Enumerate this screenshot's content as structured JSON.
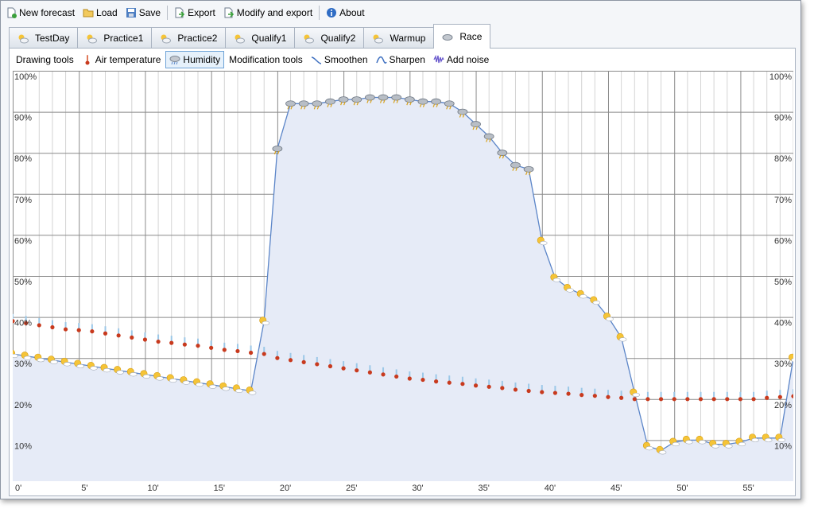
{
  "toolbar": {
    "items": [
      {
        "label": "New forecast",
        "icon": "new-document-icon"
      },
      {
        "label": "Load",
        "icon": "folder-open-icon"
      },
      {
        "label": "Save",
        "icon": "floppy-disk-icon"
      },
      {
        "label": "Export",
        "icon": "export-icon"
      },
      {
        "label": "Modify and export",
        "icon": "modify-export-icon"
      },
      {
        "label": "About",
        "icon": "info-icon"
      }
    ]
  },
  "tabs": [
    {
      "label": "TestDay",
      "icon": "sun-cloud-icon"
    },
    {
      "label": "Practice1",
      "icon": "sun-cloud-icon"
    },
    {
      "label": "Practice2",
      "icon": "sun-cloud-icon"
    },
    {
      "label": "Qualify1",
      "icon": "sun-cloud-icon"
    },
    {
      "label": "Qualify2",
      "icon": "sun-cloud-icon"
    },
    {
      "label": "Warmup",
      "icon": "sun-cloud-icon"
    },
    {
      "label": "Race",
      "icon": "cloud-icon",
      "active": true
    }
  ],
  "subtoolbar": {
    "drawing_label": "Drawing tools",
    "air_temperature": "Air temperature",
    "humidity": "Humidity",
    "modification_label": "Modification tools",
    "smoothen": "Smoothen",
    "sharpen": "Sharpen",
    "add_noise": "Add noise"
  },
  "colors": {
    "line": "#5b85c8",
    "fill": "#e6ebf7",
    "grid": "#8a8a8a",
    "minor_grid": "#d4d4d4",
    "sun": "#f5c437",
    "thermo": "#c83a1e"
  },
  "chart_data": {
    "type": "line",
    "xlim": [
      0,
      59
    ],
    "ylim": [
      0,
      100
    ],
    "x_ticks": [
      "0'",
      "5'",
      "10'",
      "15'",
      "20'",
      "25'",
      "30'",
      "35'",
      "40'",
      "45'",
      "50'",
      "55'"
    ],
    "x_tick_values": [
      0,
      5,
      10,
      15,
      20,
      25,
      30,
      35,
      40,
      45,
      50,
      55
    ],
    "y_ticks": [
      "10%",
      "20%",
      "30%",
      "40%",
      "50%",
      "60%",
      "70%",
      "80%",
      "90%",
      "100%"
    ],
    "y_tick_values": [
      10,
      20,
      30,
      40,
      50,
      60,
      70,
      80,
      90,
      100
    ],
    "grid": true,
    "series": [
      {
        "name": "Humidity",
        "values": [
          31,
          30.5,
          30,
          29.5,
          29,
          28.5,
          28,
          27.5,
          27,
          26.5,
          26,
          25.5,
          25,
          24.5,
          24,
          23.5,
          23,
          22.5,
          22,
          39,
          81,
          92,
          92,
          92,
          92.5,
          93,
          93,
          93.5,
          93.5,
          93.5,
          93,
          92.5,
          92.5,
          92,
          90,
          87,
          84,
          80,
          77,
          76,
          58.5,
          49.5,
          47,
          45.5,
          44,
          40,
          35,
          21.5,
          8.5,
          7.5,
          9.5,
          10,
          10,
          9,
          9,
          9.5,
          10.5,
          10.5,
          10.5,
          30
        ]
      },
      {
        "name": "Air temperature",
        "values": [
          39,
          38.5,
          38,
          37.5,
          37,
          36.8,
          36.5,
          36,
          35.5,
          35,
          34.5,
          34,
          33.7,
          33.3,
          33,
          32.5,
          32,
          31.7,
          31.3,
          31,
          30,
          29.5,
          29,
          28.5,
          28,
          27.5,
          27,
          26.5,
          26,
          25.5,
          25,
          24.7,
          24.3,
          24,
          23.7,
          23.3,
          23,
          22.7,
          22.3,
          22,
          21.7,
          21.5,
          21.3,
          21,
          20.8,
          20.5,
          20.3,
          20,
          20,
          20,
          20,
          20,
          20,
          20,
          20,
          20,
          20,
          20.3,
          20.5,
          20.7
        ]
      }
    ]
  }
}
